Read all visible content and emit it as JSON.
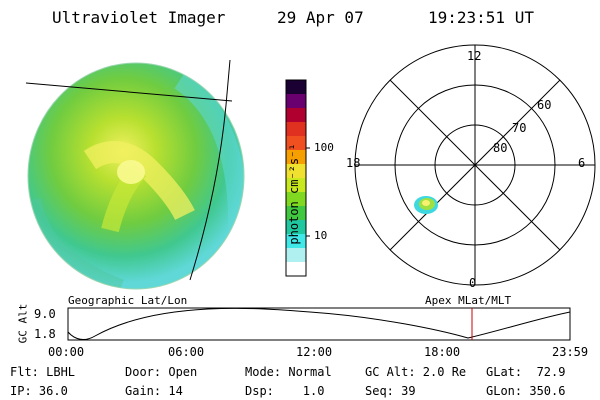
{
  "header": {
    "instrument": "Ultraviolet Imager",
    "date": "29 Apr 07",
    "time": "19:23:51 UT"
  },
  "colorbar": {
    "unit_label": "photon cm⁻²s⁻¹",
    "ticks": [
      "100",
      "10"
    ],
    "colors": [
      "#1a0033",
      "#6a0070",
      "#b00030",
      "#e03020",
      "#f05020",
      "#f5a000",
      "#f0e030",
      "#c8e820",
      "#80d820",
      "#40c840",
      "#20c8a0",
      "#40e8e8",
      "#b0f0f0",
      "#ffffff"
    ]
  },
  "polar": {
    "ring_labels": [
      "60",
      "70",
      "80"
    ],
    "clock_labels": {
      "top": "12",
      "bottom": "0",
      "left": "18",
      "right": "6"
    }
  },
  "timeline": {
    "left_label": "Geographic Lat/Lon",
    "right_label": "Apex MLat/MLT",
    "axis_label": "GC Alt",
    "y_ticks": [
      "9.0",
      "1.8"
    ],
    "x_ticks": [
      "00:00",
      "06:00",
      "12:00",
      "18:00",
      "23:59"
    ],
    "marker_color": "#cc0000"
  },
  "footer": [
    [
      "Flt: LBHL",
      "Door: Open",
      "Mode: Normal",
      "GC Alt: 2.0 Re",
      "GLat:  72.9"
    ],
    [
      "IP: 36.0",
      "Gain: 14",
      "Dsp:    1.0",
      "Seq: 39",
      "GLon: 350.6"
    ]
  ]
}
